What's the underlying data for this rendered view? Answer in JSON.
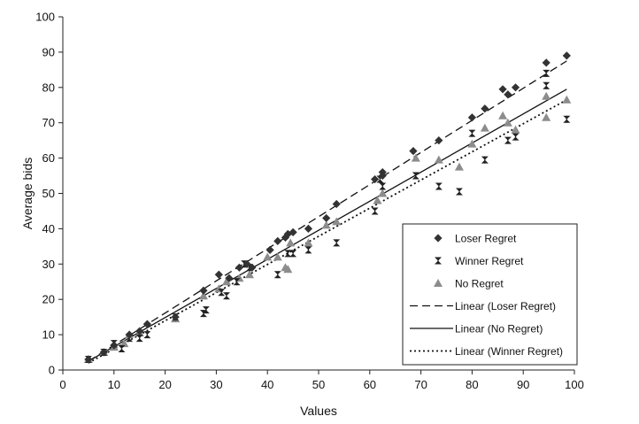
{
  "chart_data": {
    "type": "scatter",
    "title": "",
    "xlabel": "Values",
    "ylabel": "Average bids",
    "xlim": [
      0,
      100
    ],
    "ylim": [
      0,
      100
    ],
    "x_ticks": [
      "0",
      "10",
      "20",
      "30",
      "40",
      "50",
      "60",
      "70",
      "80",
      "90",
      "100"
    ],
    "y_ticks": [
      "0",
      "10",
      "20",
      "30",
      "40",
      "50",
      "60",
      "70",
      "80",
      "90",
      "100"
    ],
    "grid": false,
    "legend_position": "lower-right",
    "series": [
      {
        "name": "Loser Regret",
        "kind": "scatter",
        "marker": "diamond",
        "color": "#333333",
        "points": [
          [
            5,
            3
          ],
          [
            8,
            5
          ],
          [
            10,
            7
          ],
          [
            13,
            10
          ],
          [
            15,
            11
          ],
          [
            16.5,
            13
          ],
          [
            22,
            15
          ],
          [
            27.5,
            22.5
          ],
          [
            30.5,
            27
          ],
          [
            32.5,
            26
          ],
          [
            34.5,
            29
          ],
          [
            36,
            30
          ],
          [
            37,
            29
          ],
          [
            40.5,
            34
          ],
          [
            42,
            36.5
          ],
          [
            43.5,
            37.5
          ],
          [
            44,
            38.5
          ],
          [
            45,
            39
          ],
          [
            48,
            40
          ],
          [
            51.5,
            43
          ],
          [
            53.5,
            47
          ],
          [
            61,
            54
          ],
          [
            62.5,
            55
          ],
          [
            62.5,
            56
          ],
          [
            68.5,
            62
          ],
          [
            73.5,
            65
          ],
          [
            80,
            71.5
          ],
          [
            82.5,
            74
          ],
          [
            86,
            79.5
          ],
          [
            87,
            78
          ],
          [
            88.5,
            80
          ],
          [
            94.5,
            87
          ],
          [
            98.5,
            89
          ]
        ]
      },
      {
        "name": "Winner Regret",
        "kind": "scatter",
        "marker": "bowtie",
        "color": "#222222",
        "points": [
          [
            5,
            3
          ],
          [
            8,
            5
          ],
          [
            10,
            7.5
          ],
          [
            11.5,
            6
          ],
          [
            13,
            9
          ],
          [
            15,
            9
          ],
          [
            16.5,
            10
          ],
          [
            22,
            15
          ],
          [
            27.5,
            16
          ],
          [
            28,
            17
          ],
          [
            31,
            22
          ],
          [
            32,
            21
          ],
          [
            34,
            25
          ],
          [
            35.5,
            30
          ],
          [
            36.5,
            29
          ],
          [
            42,
            27
          ],
          [
            44,
            33
          ],
          [
            45,
            33
          ],
          [
            48,
            34
          ],
          [
            53.5,
            36
          ],
          [
            61,
            45
          ],
          [
            62,
            54
          ],
          [
            62.5,
            52
          ],
          [
            69,
            55
          ],
          [
            73.5,
            52
          ],
          [
            77.5,
            50.5
          ],
          [
            80,
            67
          ],
          [
            82.5,
            59.5
          ],
          [
            87,
            65
          ],
          [
            88.5,
            66
          ],
          [
            94.5,
            84
          ],
          [
            94.5,
            80.5
          ],
          [
            98.5,
            71
          ]
        ]
      },
      {
        "name": "No Regret",
        "kind": "scatter",
        "marker": "triangle",
        "color": "#8c8c8c",
        "points": [
          [
            5,
            3
          ],
          [
            8,
            5
          ],
          [
            10,
            6.5
          ],
          [
            12,
            7.5
          ],
          [
            13,
            10
          ],
          [
            15,
            10.5
          ],
          [
            22,
            14.5
          ],
          [
            27.5,
            21
          ],
          [
            30.5,
            23
          ],
          [
            32,
            25
          ],
          [
            34.5,
            26
          ],
          [
            36.5,
            27
          ],
          [
            40,
            32
          ],
          [
            42,
            32
          ],
          [
            43.5,
            29
          ],
          [
            44,
            28.5
          ],
          [
            44.5,
            36
          ],
          [
            48,
            36
          ],
          [
            51.5,
            41
          ],
          [
            53.5,
            42
          ],
          [
            61.5,
            48
          ],
          [
            62.5,
            50
          ],
          [
            69,
            60
          ],
          [
            73.5,
            59.5
          ],
          [
            77.5,
            57.5
          ],
          [
            80,
            64
          ],
          [
            82.5,
            68.5
          ],
          [
            86,
            72
          ],
          [
            87,
            70
          ],
          [
            88.5,
            68
          ],
          [
            94.5,
            71.5
          ],
          [
            94.5,
            77.5
          ],
          [
            98.5,
            76.5
          ]
        ]
      },
      {
        "name": "Linear (Loser Regret)",
        "kind": "line",
        "dash": "dashed",
        "color": "#111111",
        "points": [
          [
            5,
            2.5
          ],
          [
            98.5,
            87.5
          ]
        ]
      },
      {
        "name": "Linear (No Regret)",
        "kind": "line",
        "dash": "solid",
        "color": "#111111",
        "points": [
          [
            5,
            2.5
          ],
          [
            98.5,
            79.5
          ]
        ]
      },
      {
        "name": "Linear (Winner Regret)",
        "kind": "line",
        "dash": "dotted",
        "color": "#111111",
        "points": [
          [
            5,
            2
          ],
          [
            98.5,
            76.5
          ]
        ]
      }
    ],
    "legend_order": [
      "Loser Regret",
      "Winner Regret",
      "No Regret",
      "Linear (Loser Regret)",
      "Linear (No Regret)",
      "Linear (Winner Regret)"
    ]
  }
}
